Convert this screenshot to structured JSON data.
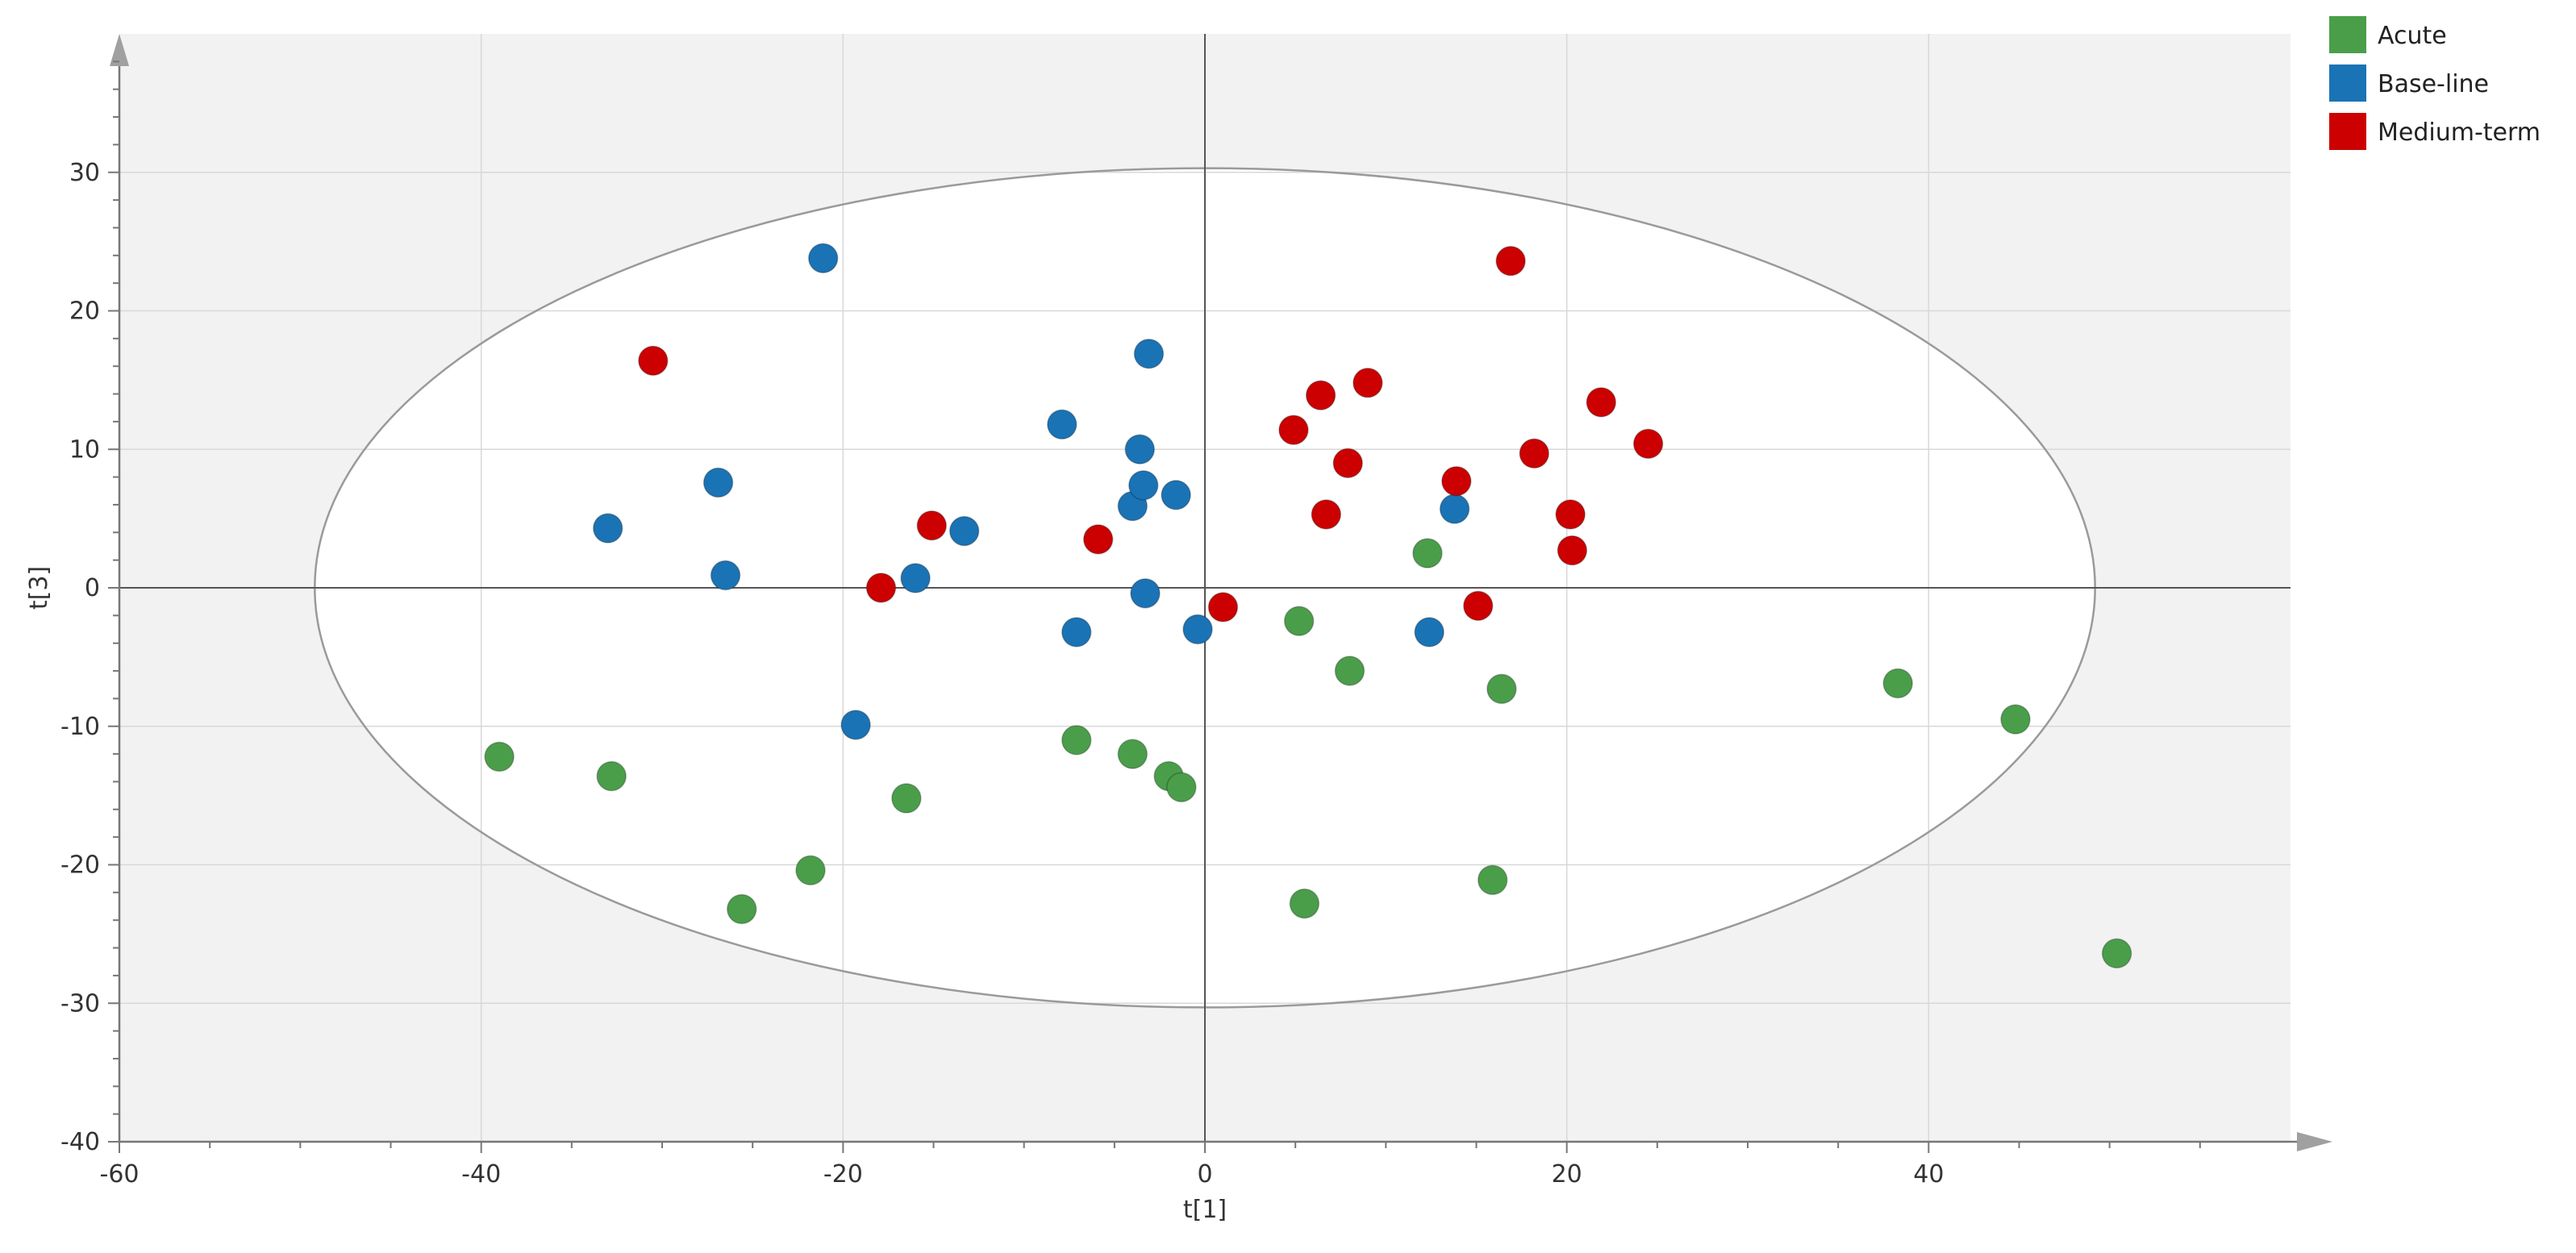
{
  "chart_data": {
    "type": "scatter",
    "title": "",
    "xlabel": "t[1]",
    "ylabel": "t[3]",
    "xlim": [
      -60,
      60
    ],
    "ylim": [
      -40,
      40
    ],
    "x_ticks": [
      -60,
      -40,
      -20,
      0,
      20,
      40
    ],
    "y_ticks": [
      -40,
      -30,
      -20,
      -10,
      0,
      10,
      20,
      30
    ],
    "grid": true,
    "legend_position": "top-right",
    "confidence_ellipse": {
      "center": [
        0,
        0
      ],
      "semi_axis_x": 49.2,
      "semi_axis_y": 30.3
    },
    "series": [
      {
        "name": "Acute",
        "color": "#4a9e4a",
        "points": [
          [
            -39.0,
            -12.2
          ],
          [
            -32.8,
            -13.6
          ],
          [
            -25.6,
            -23.2
          ],
          [
            -21.8,
            -20.4
          ],
          [
            -16.5,
            -15.2
          ],
          [
            -7.1,
            -11.0
          ],
          [
            -4.0,
            -12.0
          ],
          [
            -2.0,
            -13.6
          ],
          [
            -1.3,
            -14.4
          ],
          [
            5.2,
            -2.4
          ],
          [
            5.5,
            -22.8
          ],
          [
            8.0,
            -6.0
          ],
          [
            12.3,
            2.5
          ],
          [
            15.9,
            -21.1
          ],
          [
            16.4,
            -7.3
          ],
          [
            38.3,
            -6.9
          ],
          [
            44.8,
            -9.5
          ],
          [
            50.4,
            -26.4
          ]
        ]
      },
      {
        "name": "Base-line",
        "color": "#1a73b5",
        "points": [
          [
            -21.1,
            23.8
          ],
          [
            -33.0,
            4.3
          ],
          [
            -26.9,
            7.6
          ],
          [
            -26.5,
            0.9
          ],
          [
            -19.3,
            -9.9
          ],
          [
            -16.0,
            0.7
          ],
          [
            -13.3,
            4.1
          ],
          [
            -7.9,
            11.8
          ],
          [
            -7.1,
            -3.2
          ],
          [
            -4.0,
            5.9
          ],
          [
            -3.6,
            10.0
          ],
          [
            -3.4,
            7.4
          ],
          [
            -3.1,
            16.9
          ],
          [
            -3.3,
            -0.4
          ],
          [
            -1.6,
            6.7
          ],
          [
            -0.4,
            -3.0
          ],
          [
            12.4,
            -3.2
          ],
          [
            13.8,
            5.7
          ]
        ]
      },
      {
        "name": "Medium-term",
        "color": "#cc0000",
        "points": [
          [
            -30.5,
            16.4
          ],
          [
            -17.9,
            0.0
          ],
          [
            -15.1,
            4.5
          ],
          [
            -5.9,
            3.5
          ],
          [
            1.0,
            -1.4
          ],
          [
            4.9,
            11.4
          ],
          [
            6.4,
            13.9
          ],
          [
            6.7,
            5.3
          ],
          [
            7.9,
            9.0
          ],
          [
            9.0,
            14.8
          ],
          [
            13.9,
            7.7
          ],
          [
            15.1,
            -1.3
          ],
          [
            16.9,
            23.6
          ],
          [
            18.2,
            9.7
          ],
          [
            20.2,
            5.3
          ],
          [
            20.3,
            2.7
          ],
          [
            21.9,
            13.4
          ],
          [
            24.5,
            10.4
          ]
        ]
      }
    ]
  }
}
